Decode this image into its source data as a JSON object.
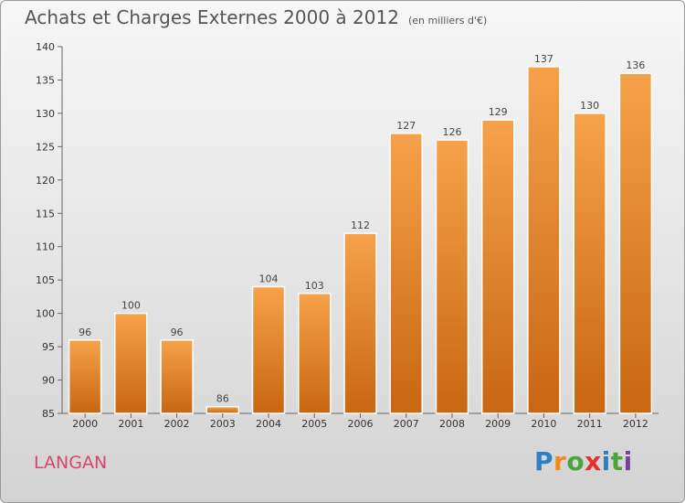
{
  "title": "Achats et Charges Externes 2000 à 2012",
  "unit_note": "(en milliers d'€)",
  "place_name": "LANGAN",
  "logo": {
    "text": "Proxiti",
    "colors": [
      "#2f7fc1",
      "#f08a1c",
      "#4aa63a",
      "#e2312d",
      "#2f7fc1",
      "#4aa63a",
      "#7b3fa0"
    ]
  },
  "colors": {
    "bar_top": "#f6a24a",
    "bar_bottom": "#c86612",
    "title": "#555555",
    "place": "#d9446e"
  },
  "chart_data": {
    "type": "bar",
    "categories": [
      "2000",
      "2001",
      "2002",
      "2003",
      "2004",
      "2005",
      "2006",
      "2007",
      "2008",
      "2009",
      "2010",
      "2011",
      "2012"
    ],
    "values": [
      96,
      100,
      96,
      86,
      104,
      103,
      112,
      127,
      126,
      129,
      137,
      130,
      136
    ],
    "data_labels": [
      "96",
      "100",
      "96",
      "86",
      "104",
      "103",
      "112",
      "127",
      "126",
      "129",
      "137",
      "130",
      "136"
    ],
    "ylim": [
      85,
      140
    ],
    "yticks": [
      85,
      90,
      95,
      100,
      105,
      110,
      115,
      120,
      125,
      130,
      135,
      140
    ],
    "grid": false,
    "legend": "none"
  }
}
